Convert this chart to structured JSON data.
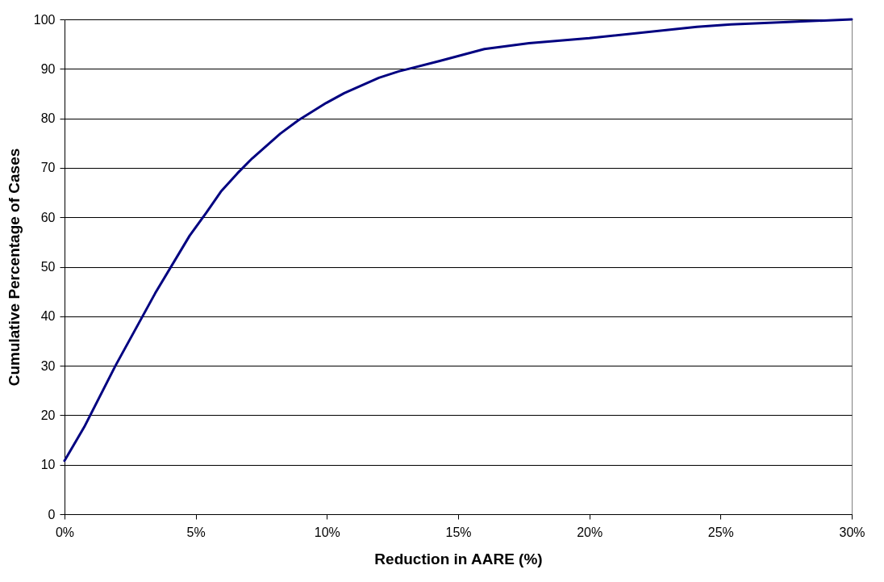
{
  "chart_data": {
    "type": "line",
    "xlabel": "Reduction in AARE (%)",
    "ylabel": "Cumulative Percentage of Cases",
    "x": [
      0,
      0.75,
      1.94,
      3.45,
      4.77,
      5.4,
      5.96,
      6.59,
      7.15,
      8.22,
      8.91,
      9.97,
      10.66,
      11.98,
      12.74,
      14.3,
      16.0,
      17.7,
      20.0,
      24.1,
      25.4,
      30
    ],
    "series": [
      {
        "color": "#000080",
        "values": [
          10.8,
          17.6,
          30.0,
          44.6,
          56.3,
          60.9,
          65.2,
          68.9,
          71.9,
          76.9,
          79.6,
          83.1,
          85.1,
          88.2,
          89.5,
          91.6,
          94.0,
          95.2,
          96.2,
          98.5,
          99.0,
          100
        ]
      }
    ],
    "xlim": [
      0,
      30
    ],
    "xticks": [
      {
        "value": 0,
        "label": "0%"
      },
      {
        "value": 5,
        "label": "5%"
      },
      {
        "value": 10,
        "label": "10%"
      },
      {
        "value": 15,
        "label": "15%"
      },
      {
        "value": 20,
        "label": "20%"
      },
      {
        "value": 25,
        "label": "25%"
      },
      {
        "value": 30,
        "label": "30%"
      }
    ],
    "ylim": [
      0,
      100
    ],
    "yticks": [
      0,
      10,
      20,
      30,
      40,
      50,
      60,
      70,
      80,
      90,
      100
    ],
    "grid": "y",
    "marker": "none",
    "line_style": "solid"
  }
}
